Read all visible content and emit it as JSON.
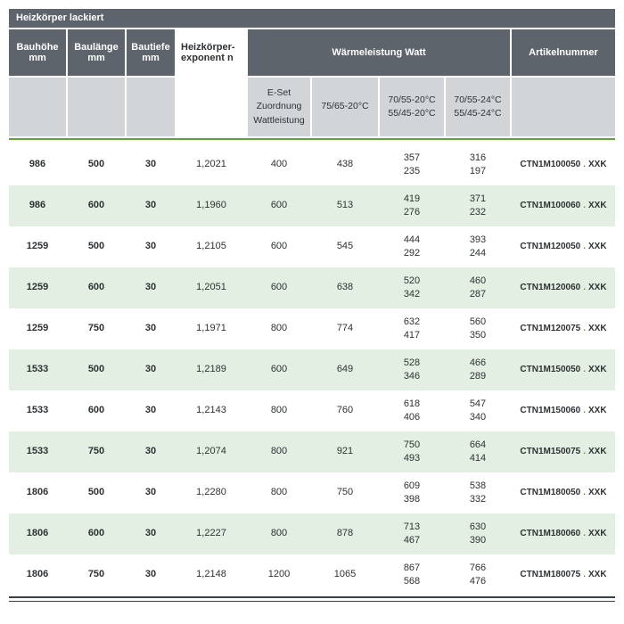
{
  "title": "Heizkörper lackiert",
  "colors": {
    "header_dark": "#5d646b",
    "subheader_gray": "#d2d5d7",
    "row_green": "#e3efe3",
    "accent_green": "#52a52e"
  },
  "table": {
    "headers": {
      "bauhoehe": "Bauhöhe\nmm",
      "baulaenge": "Baulänge\nmm",
      "bautiefe": "Bautiefe\nmm",
      "exponent": "Heizkörper-\nexponent n",
      "waermeleistung": "Wärmeleistung Watt",
      "artikelnummer": "Artikelnummer"
    },
    "subheaders": {
      "eset": "E-Set\nZuordnung\nWattleistung",
      "w7565": "75/65-20°C",
      "w7055_20": "70/55-20°C\n55/45-20°C",
      "w7055_24": "70/55-24°C\n55/45-24°C"
    },
    "artikel_dot": ".",
    "rows": [
      {
        "bauhoehe": "986",
        "baulaenge": "500",
        "bautiefe": "30",
        "exponent": "1,2021",
        "eset": "400",
        "w7565": "438",
        "w7055_20": "357\n235",
        "w7055_24": "316\n197",
        "artikel": "CTN1M100050",
        "artikel_suffix": "XXK"
      },
      {
        "bauhoehe": "986",
        "baulaenge": "600",
        "bautiefe": "30",
        "exponent": "1,1960",
        "eset": "600",
        "w7565": "513",
        "w7055_20": "419\n276",
        "w7055_24": "371\n232",
        "artikel": "CTN1M100060",
        "artikel_suffix": "XXK"
      },
      {
        "bauhoehe": "1259",
        "baulaenge": "500",
        "bautiefe": "30",
        "exponent": "1,2105",
        "eset": "600",
        "w7565": "545",
        "w7055_20": "444\n292",
        "w7055_24": "393\n244",
        "artikel": "CTN1M120050",
        "artikel_suffix": "XXK"
      },
      {
        "bauhoehe": "1259",
        "baulaenge": "600",
        "bautiefe": "30",
        "exponent": "1,2051",
        "eset": "600",
        "w7565": "638",
        "w7055_20": "520\n342",
        "w7055_24": "460\n287",
        "artikel": "CTN1M120060",
        "artikel_suffix": "XXK"
      },
      {
        "bauhoehe": "1259",
        "baulaenge": "750",
        "bautiefe": "30",
        "exponent": "1,1971",
        "eset": "800",
        "w7565": "774",
        "w7055_20": "632\n417",
        "w7055_24": "560\n350",
        "artikel": "CTN1M120075",
        "artikel_suffix": "XXK"
      },
      {
        "bauhoehe": "1533",
        "baulaenge": "500",
        "bautiefe": "30",
        "exponent": "1,2189",
        "eset": "600",
        "w7565": "649",
        "w7055_20": "528\n346",
        "w7055_24": "466\n289",
        "artikel": "CTN1M150050",
        "artikel_suffix": "XXK"
      },
      {
        "bauhoehe": "1533",
        "baulaenge": "600",
        "bautiefe": "30",
        "exponent": "1,2143",
        "eset": "800",
        "w7565": "760",
        "w7055_20": "618\n406",
        "w7055_24": "547\n340",
        "artikel": "CTN1M150060",
        "artikel_suffix": "XXK"
      },
      {
        "bauhoehe": "1533",
        "baulaenge": "750",
        "bautiefe": "30",
        "exponent": "1,2074",
        "eset": "800",
        "w7565": "921",
        "w7055_20": "750\n493",
        "w7055_24": "664\n414",
        "artikel": "CTN1M150075",
        "artikel_suffix": "XXK"
      },
      {
        "bauhoehe": "1806",
        "baulaenge": "500",
        "bautiefe": "30",
        "exponent": "1,2280",
        "eset": "800",
        "w7565": "750",
        "w7055_20": "609\n398",
        "w7055_24": "538\n332",
        "artikel": "CTN1M180050",
        "artikel_suffix": "XXK"
      },
      {
        "bauhoehe": "1806",
        "baulaenge": "600",
        "bautiefe": "30",
        "exponent": "1,2227",
        "eset": "800",
        "w7565": "878",
        "w7055_20": "713\n467",
        "w7055_24": "630\n390",
        "artikel": "CTN1M180060",
        "artikel_suffix": "XXK"
      },
      {
        "bauhoehe": "1806",
        "baulaenge": "750",
        "bautiefe": "30",
        "exponent": "1,2148",
        "eset": "1200",
        "w7565": "1065",
        "w7055_20": "867\n568",
        "w7055_24": "766\n476",
        "artikel": "CTN1M180075",
        "artikel_suffix": "XXK"
      }
    ]
  }
}
